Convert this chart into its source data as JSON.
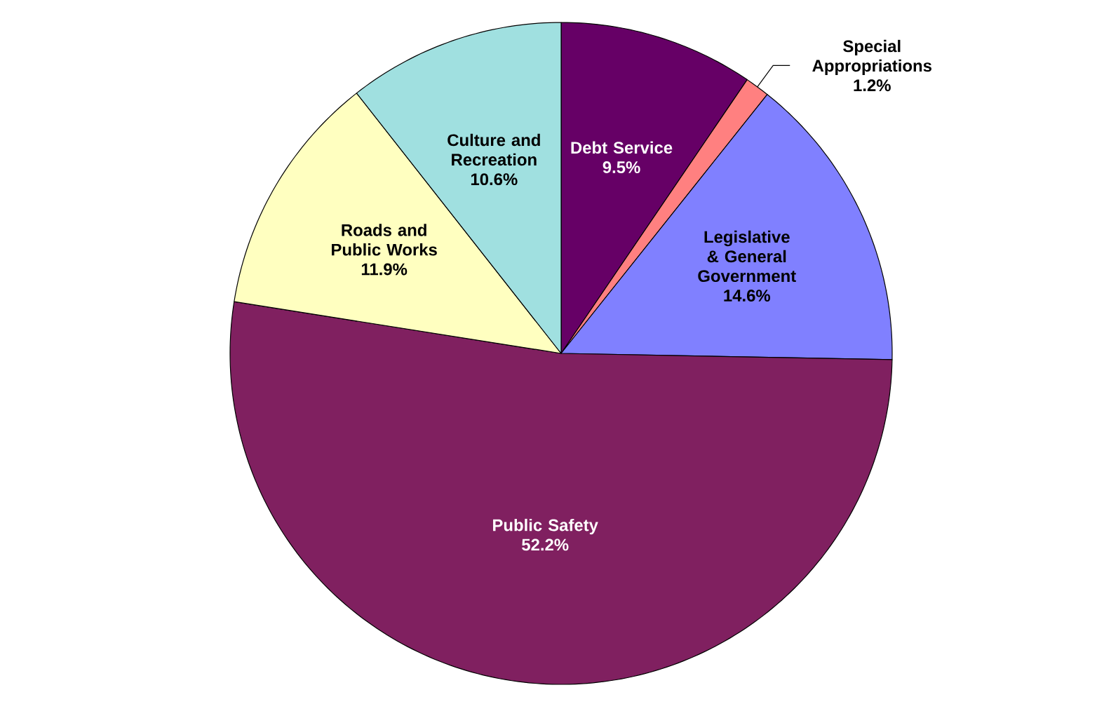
{
  "chart_data": {
    "type": "pie",
    "categories": [
      "Debt Service",
      "Special Appropriations",
      "Legislative & General Government",
      "Public Safety",
      "Roads and Public Works",
      "Culture and Recreation"
    ],
    "values": [
      9.5,
      1.2,
      14.6,
      52.2,
      11.9,
      10.6
    ],
    "value_labels": [
      "9.5%",
      "1.2%",
      "14.6%",
      "52.2%",
      "11.9%",
      "10.6%"
    ],
    "colors": [
      "#660066",
      "#ff8080",
      "#8080ff",
      "#802060",
      "#ffffc0",
      "#a0e0e0"
    ]
  }
}
